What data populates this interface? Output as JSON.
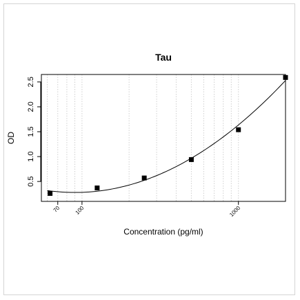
{
  "chart_data": {
    "type": "scatter",
    "title": "Tau",
    "xlabel": "Concentration (pg/ml)",
    "ylabel": "OD",
    "x_scale": "log",
    "xlim": [
      55,
      2000
    ],
    "ylim": [
      0.1,
      2.65
    ],
    "x_ticks": [
      70,
      100,
      1000
    ],
    "y_ticks": [
      0.5,
      1.0,
      1.5,
      2.0,
      2.5
    ],
    "x_tick_labels": [
      "70",
      "100",
      "1000"
    ],
    "y_tick_labels": [
      "0.5",
      "1.0",
      "1.5",
      "2.0",
      "2.5"
    ],
    "grid": "vertical dotted",
    "fitted_curve": true,
    "series": [
      {
        "x": [
          62.5,
          125,
          250,
          500,
          1000,
          2000
        ],
        "y": [
          0.26,
          0.37,
          0.57,
          0.94,
          1.54,
          2.59
        ]
      }
    ],
    "colors": {
      "points": "#000000",
      "curve": "#000000",
      "grid": "#cfcfcf"
    }
  }
}
